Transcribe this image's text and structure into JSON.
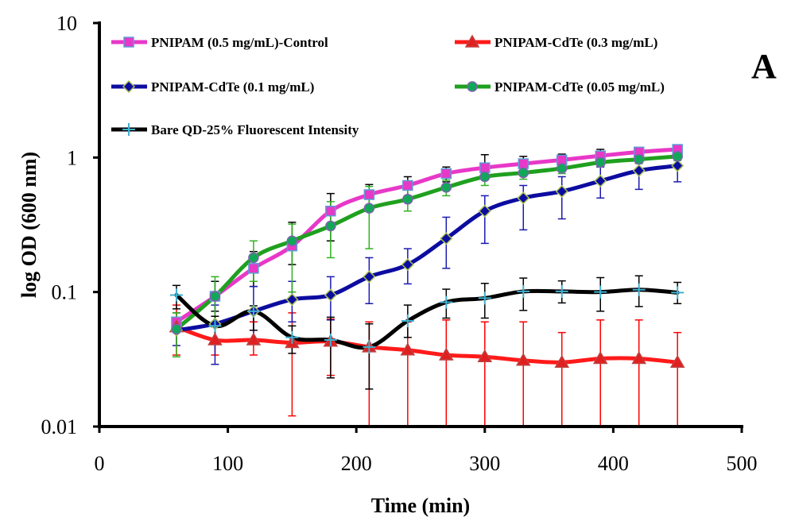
{
  "chart_data": {
    "type": "line",
    "title": "",
    "panel_label": "A",
    "xlabel": "Time (min)",
    "ylabel": "log OD (600 nm)",
    "xscale": "linear",
    "yscale": "log",
    "xlim": [
      0,
      500
    ],
    "ylim": [
      0.01,
      10
    ],
    "xticks": [
      0,
      100,
      200,
      300,
      400,
      500
    ],
    "xtick_labels": [
      "0",
      "100",
      "200",
      "300",
      "400",
      "500"
    ],
    "yticks": [
      0.01,
      0.1,
      1,
      10
    ],
    "ytick_labels": [
      "0.01",
      "0.1",
      "1",
      "10"
    ],
    "grid": false,
    "legend_position": "top",
    "x": [
      60,
      90,
      120,
      150,
      180,
      210,
      240,
      270,
      300,
      330,
      360,
      390,
      420,
      450
    ],
    "series": [
      {
        "name": "PNIPAM (0.5 mg/mL)-Control",
        "color": "#e838c8",
        "marker": "square",
        "marker_fill": "#e838c8",
        "marker_edge": "#5b9bd5",
        "errorbar_color": "#000000",
        "values": [
          0.06,
          0.093,
          0.15,
          0.22,
          0.4,
          0.53,
          0.62,
          0.76,
          0.84,
          0.9,
          0.96,
          1.03,
          1.1,
          1.15
        ],
        "err_low": [
          0.052,
          0.072,
          0.11,
          0.16,
          0.24,
          0.42,
          0.52,
          0.66,
          0.73,
          0.8,
          0.87,
          0.93,
          1.0,
          1.05
        ],
        "err_high": [
          0.07,
          0.12,
          0.2,
          0.33,
          0.54,
          0.63,
          0.72,
          0.85,
          1.05,
          1.02,
          1.06,
          1.15,
          1.18,
          1.22
        ]
      },
      {
        "name": "PNIPAM-CdTe (0.3 mg/mL)",
        "color": "#ff1a1a",
        "marker": "triangle",
        "marker_fill": "#e02020",
        "marker_edge": "#c04040",
        "errorbar_color": "#ff0000",
        "values": [
          0.055,
          0.044,
          0.044,
          0.042,
          0.043,
          0.039,
          0.037,
          0.034,
          0.033,
          0.031,
          0.03,
          0.032,
          0.032,
          0.03
        ],
        "err_low": [
          0.034,
          0.034,
          0.034,
          0.012,
          0.024,
          0.01,
          0.01,
          0.01,
          0.01,
          0.01,
          0.01,
          0.01,
          0.01,
          0.01
        ],
        "err_high": [
          0.08,
          0.06,
          0.06,
          0.07,
          0.063,
          0.06,
          0.06,
          0.062,
          0.06,
          0.06,
          0.05,
          0.062,
          0.062,
          0.05
        ]
      },
      {
        "name": "PNIPAM-CdTe (0.1 mg/mL)",
        "color": "#0c0ca0",
        "marker": "diamond",
        "marker_fill": "#0c0ca0",
        "marker_edge": "#a8c050",
        "errorbar_color": "#1a1ab0",
        "values": [
          0.052,
          0.058,
          0.072,
          0.088,
          0.095,
          0.13,
          0.16,
          0.25,
          0.4,
          0.5,
          0.56,
          0.67,
          0.8,
          0.87
        ],
        "err_low": [
          0.04,
          0.029,
          0.045,
          0.06,
          0.062,
          0.082,
          0.115,
          0.15,
          0.23,
          0.29,
          0.35,
          0.5,
          0.58,
          0.66
        ],
        "err_high": [
          0.065,
          0.08,
          0.11,
          0.12,
          0.13,
          0.18,
          0.21,
          0.36,
          0.52,
          0.62,
          0.72,
          0.85,
          0.97,
          1.0
        ]
      },
      {
        "name": "PNIPAM-CdTe (0.05 mg/mL)",
        "color": "#1fa01f",
        "marker": "circle",
        "marker_fill": "#10a858",
        "marker_edge": "#8060b0",
        "errorbar_color": "#30b020",
        "values": [
          0.053,
          0.093,
          0.18,
          0.24,
          0.31,
          0.42,
          0.49,
          0.6,
          0.72,
          0.77,
          0.83,
          0.92,
          0.97,
          1.02
        ],
        "err_low": [
          0.033,
          0.055,
          0.12,
          0.1,
          0.18,
          0.21,
          0.4,
          0.52,
          0.62,
          0.69,
          0.76,
          0.86,
          0.9,
          0.95
        ],
        "err_high": [
          0.07,
          0.13,
          0.24,
          0.32,
          0.47,
          0.61,
          0.58,
          0.68,
          0.8,
          0.86,
          0.9,
          0.98,
          1.05,
          1.1
        ]
      },
      {
        "name": "Bare QD-25% Fluorescent Intensity",
        "color": "#000000",
        "marker": "plus",
        "marker_fill": "#40b0d0",
        "marker_edge": "#40b0d0",
        "errorbar_color": "#000000",
        "values": [
          0.095,
          0.056,
          0.072,
          0.046,
          0.044,
          0.039,
          0.061,
          0.084,
          0.09,
          0.101,
          0.101,
          0.1,
          0.104,
          0.099
        ],
        "err_low": [
          0.075,
          0.044,
          0.052,
          0.035,
          0.023,
          0.019,
          0.046,
          0.064,
          0.064,
          0.073,
          0.083,
          0.072,
          0.078,
          0.082
        ],
        "err_high": [
          0.112,
          0.066,
          0.079,
          0.056,
          0.065,
          0.058,
          0.08,
          0.105,
          0.116,
          0.127,
          0.121,
          0.128,
          0.132,
          0.118
        ]
      }
    ]
  }
}
